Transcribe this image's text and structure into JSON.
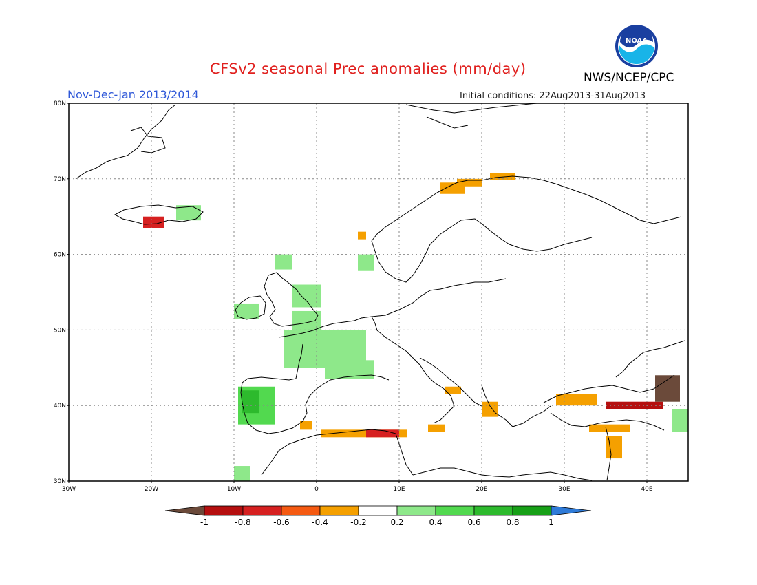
{
  "header": {
    "title": "CFSv2 seasonal Prec anomalies (mm/day)",
    "period": "Nov-Dec-Jan 2013/2014",
    "initial_conditions": "Initial conditions: 22Aug2013-31Aug2013",
    "agency": "NWS/NCEP/CPC",
    "logo_text": "NOAA"
  },
  "axes": {
    "lat_labels": [
      "80N",
      "70N",
      "60N",
      "50N",
      "40N",
      "30N"
    ],
    "lon_labels": [
      "30W",
      "20W",
      "10W",
      "0",
      "10E",
      "20E",
      "30E",
      "40E"
    ]
  },
  "colorbar": {
    "labels": [
      "-1",
      "-0.8",
      "-0.6",
      "-0.4",
      "-0.2",
      "0.2",
      "0.4",
      "0.6",
      "0.8",
      "1"
    ],
    "colors": [
      "#6b4a3a",
      "#b50f0f",
      "#d62020",
      "#f55a12",
      "#f5a000",
      "#ffffff",
      "#8ee88a",
      "#52d94f",
      "#2dba2d",
      "#17a017",
      "#2f7bd8"
    ]
  },
  "chart_data": {
    "type": "heatmap",
    "title": "CFSv2 seasonal Prec anomalies (mm/day)",
    "lon_range": [
      -30,
      45
    ],
    "lat_range": [
      30,
      80
    ],
    "units": "mm/day",
    "regions": [
      {
        "name": "Iceland west",
        "lon": [
          -21,
          -18.5
        ],
        "lat": [
          63.5,
          65
        ],
        "value": -0.6
      },
      {
        "name": "Iceland east",
        "lon": [
          -17,
          -14
        ],
        "lat": [
          64.5,
          66.5
        ],
        "value": 0.3
      },
      {
        "name": "Norway north coast",
        "lon": [
          15,
          18
        ],
        "lat": [
          68,
          69.5
        ],
        "value": -0.3
      },
      {
        "name": "Norway north",
        "lon": [
          17,
          20
        ],
        "lat": [
          69,
          70
        ],
        "value": -0.3
      },
      {
        "name": "Norway far north",
        "lon": [
          21,
          24
        ],
        "lat": [
          69.8,
          70.8
        ],
        "value": -0.3
      },
      {
        "name": "Norway west coast",
        "lon": [
          5,
          6
        ],
        "lat": [
          62,
          63
        ],
        "value": -0.3
      },
      {
        "name": "Norway southwest",
        "lon": [
          5,
          7
        ],
        "lat": [
          57.8,
          60
        ],
        "value": 0.3
      },
      {
        "name": "Scotland",
        "lon": [
          -5,
          -3
        ],
        "lat": [
          58,
          60
        ],
        "value": 0.3
      },
      {
        "name": "England",
        "lon": [
          -3,
          0.5
        ],
        "lat": [
          53,
          56
        ],
        "value": 0.3
      },
      {
        "name": "England south",
        "lon": [
          -3,
          0.5
        ],
        "lat": [
          50,
          52.5
        ],
        "value": 0.3
      },
      {
        "name": "Ireland",
        "lon": [
          -10,
          -7
        ],
        "lat": [
          51.5,
          53.5
        ],
        "value": 0.3
      },
      {
        "name": "France",
        "lon": [
          -4,
          6
        ],
        "lat": [
          45,
          50
        ],
        "value": 0.3
      },
      {
        "name": "France south",
        "lon": [
          1,
          7
        ],
        "lat": [
          43.5,
          46
        ],
        "value": 0.3
      },
      {
        "name": "Iberia west",
        "lon": [
          -9.5,
          -5
        ],
        "lat": [
          37.5,
          42.5
        ],
        "value": 0.4
      },
      {
        "name": "Portugal central",
        "lon": [
          -9,
          -7
        ],
        "lat": [
          39,
          42
        ],
        "value": 0.6
      },
      {
        "name": "Morocco",
        "lon": [
          -10,
          -8
        ],
        "lat": [
          30,
          32
        ],
        "value": 0.3
      },
      {
        "name": "Spain southeast",
        "lon": [
          -2,
          -0.5
        ],
        "lat": [
          36.8,
          38
        ],
        "value": -0.3
      },
      {
        "name": "Algeria coast",
        "lon": [
          0.5,
          11
        ],
        "lat": [
          35.8,
          36.8
        ],
        "value": -0.3
      },
      {
        "name": "Algeria coast east",
        "lon": [
          6,
          10
        ],
        "lat": [
          35.8,
          36.8
        ],
        "value": -0.7
      },
      {
        "name": "Sicily",
        "lon": [
          13.5,
          15.5
        ],
        "lat": [
          36.5,
          37.5
        ],
        "value": -0.3
      },
      {
        "name": "Adriatic",
        "lon": [
          15.5,
          17.5
        ],
        "lat": [
          41.5,
          42.5
        ],
        "value": -0.3
      },
      {
        "name": "Greece",
        "lon": [
          20,
          22
        ],
        "lat": [
          38.5,
          40.5
        ],
        "value": -0.3
      },
      {
        "name": "Turkey north",
        "lon": [
          29,
          34
        ],
        "lat": [
          40,
          41.5
        ],
        "value": -0.3
      },
      {
        "name": "Turkey northeast",
        "lon": [
          35,
          42
        ],
        "lat": [
          39.5,
          40.5
        ],
        "value": -0.8
      },
      {
        "name": "Georgia",
        "lon": [
          41,
          44
        ],
        "lat": [
          40.5,
          44
        ],
        "value": -1.0
      },
      {
        "name": "Turkey south",
        "lon": [
          33,
          38
        ],
        "lat": [
          36.5,
          37.5
        ],
        "value": -0.3
      },
      {
        "name": "Levant",
        "lon": [
          35,
          37
        ],
        "lat": [
          33,
          36
        ],
        "value": -0.3
      },
      {
        "name": "Caspian southwest",
        "lon": [
          43,
          45
        ],
        "lat": [
          36.5,
          39.5
        ],
        "value": 0.3
      }
    ]
  }
}
